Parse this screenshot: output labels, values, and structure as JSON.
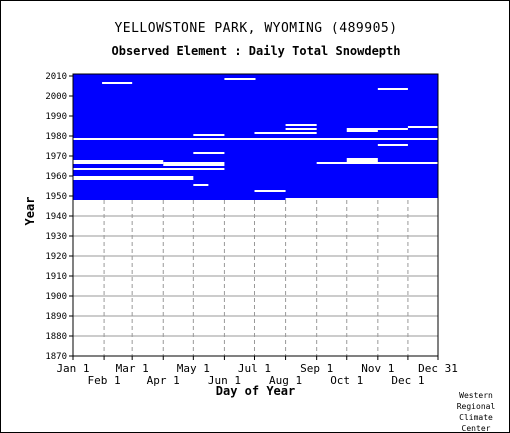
{
  "title": "YELLOWSTONE PARK, WYOMING   (489905)",
  "subtitle": "Observed Element : Daily Total Snowdepth",
  "credit": [
    "Western",
    "Regional",
    "Climate",
    "Center"
  ],
  "chart_data": {
    "type": "heatmap",
    "xlabel": "Day of Year",
    "ylabel": "Year",
    "xlim": [
      1,
      365
    ],
    "ylim": [
      1870,
      2011
    ],
    "x_ticks_top_row": [
      {
        "label": "Jan 1",
        "day": 1
      },
      {
        "label": "Mar 1",
        "day": 60
      },
      {
        "label": "May 1",
        "day": 121
      },
      {
        "label": "Jul 1",
        "day": 182
      },
      {
        "label": "Sep 1",
        "day": 244
      },
      {
        "label": "Nov 1",
        "day": 305
      },
      {
        "label": "Dec 31",
        "day": 365
      }
    ],
    "x_ticks_bottom_row": [
      {
        "label": "Feb 1",
        "day": 32
      },
      {
        "label": "Apr 1",
        "day": 91
      },
      {
        "label": "Jun 1",
        "day": 152
      },
      {
        "label": "Aug 1",
        "day": 213
      },
      {
        "label": "Oct 1",
        "day": 274
      },
      {
        "label": "Dec 1",
        "day": 335
      }
    ],
    "y_ticks": [
      1870,
      1880,
      1890,
      1900,
      1910,
      1920,
      1930,
      1940,
      1950,
      1960,
      1970,
      1980,
      1990,
      2000,
      2010
    ],
    "data_color": "#0000ff",
    "missing_color": "#ffffff",
    "grid": true,
    "record_period": {
      "start_year": 1948,
      "end_year": 2010
    },
    "missing_segments": [
      {
        "year": 2008,
        "start_day": 152,
        "end_day": 182
      },
      {
        "year": 2006,
        "start_day": 30,
        "end_day": 59
      },
      {
        "year": 2003,
        "start_day": 305,
        "end_day": 334
      },
      {
        "year": 1985,
        "start_day": 213,
        "end_day": 243
      },
      {
        "year": 1984,
        "start_day": 335,
        "end_day": 365
      },
      {
        "year": 1983,
        "start_day": 213,
        "end_day": 243
      },
      {
        "year": 1983,
        "start_day": 274,
        "end_day": 334
      },
      {
        "year": 1982,
        "start_day": 274,
        "end_day": 304
      },
      {
        "year": 1981,
        "start_day": 182,
        "end_day": 243
      },
      {
        "year": 1980,
        "start_day": 121,
        "end_day": 151
      },
      {
        "year": 1978,
        "start_day": 1,
        "end_day": 365
      },
      {
        "year": 1975,
        "start_day": 305,
        "end_day": 334
      },
      {
        "year": 1971,
        "start_day": 121,
        "end_day": 151
      },
      {
        "year": 1968,
        "start_day": 274,
        "end_day": 304
      },
      {
        "year": 1967,
        "start_day": 1,
        "end_day": 90
      },
      {
        "year": 1967,
        "start_day": 274,
        "end_day": 304
      },
      {
        "year": 1966,
        "start_day": 1,
        "end_day": 90
      },
      {
        "year": 1966,
        "start_day": 91,
        "end_day": 151
      },
      {
        "year": 1966,
        "start_day": 244,
        "end_day": 365
      },
      {
        "year": 1965,
        "start_day": 91,
        "end_day": 151
      },
      {
        "year": 1963,
        "start_day": 1,
        "end_day": 151
      },
      {
        "year": 1959,
        "start_day": 1,
        "end_day": 120
      },
      {
        "year": 1958,
        "start_day": 1,
        "end_day": 120
      },
      {
        "year": 1955,
        "start_day": 121,
        "end_day": 135
      },
      {
        "year": 1952,
        "start_day": 182,
        "end_day": 212
      },
      {
        "year": 1948,
        "start_day": 213,
        "end_day": 365
      }
    ]
  }
}
